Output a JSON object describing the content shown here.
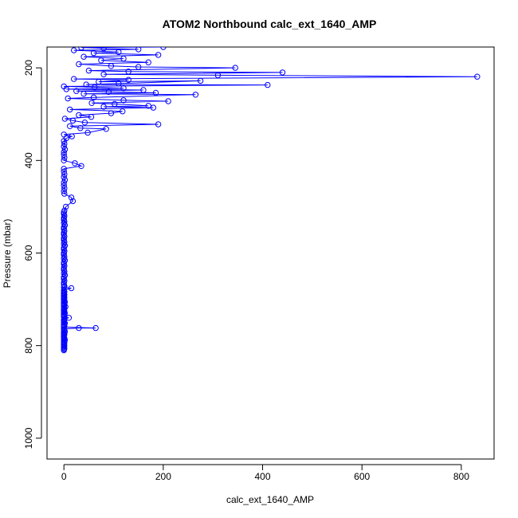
{
  "chart_data": {
    "type": "line",
    "title": "ATOM2 Northbound calc_ext_1640_AMP",
    "xlabel": "calc_ext_1640_AMP",
    "ylabel": "Pressure (mbar)",
    "x_ticks": [
      0,
      200,
      400,
      600,
      800
    ],
    "y_ticks": [
      200,
      400,
      600,
      800,
      1000
    ],
    "xlim": [
      -34,
      866
    ],
    "ylim_inverted": [
      1045,
      155
    ],
    "grid": false,
    "legend": "none",
    "series_color": "#0000ff",
    "marker": "open-circle",
    "series": [
      {
        "points": [
          [
            0,
            810
          ],
          [
            0,
            808
          ],
          [
            1,
            806
          ],
          [
            0,
            804
          ],
          [
            0,
            802
          ],
          [
            1,
            800
          ],
          [
            0,
            798
          ],
          [
            0,
            796
          ],
          [
            1,
            794
          ],
          [
            0,
            792
          ],
          [
            0,
            790
          ],
          [
            2,
            788
          ],
          [
            0,
            786
          ],
          [
            1,
            784
          ],
          [
            0,
            782
          ],
          [
            0,
            780
          ],
          [
            0,
            778
          ],
          [
            1,
            776
          ],
          [
            0,
            774
          ],
          [
            0,
            772
          ],
          [
            2,
            770
          ],
          [
            0,
            768
          ],
          [
            1,
            766
          ],
          [
            0,
            764
          ],
          [
            30,
            762
          ],
          [
            64,
            762
          ],
          [
            0,
            760
          ],
          [
            1,
            758
          ],
          [
            0,
            756
          ],
          [
            0,
            754
          ],
          [
            2,
            752
          ],
          [
            0,
            750
          ],
          [
            1,
            748
          ],
          [
            0,
            746
          ],
          [
            0,
            744
          ],
          [
            1,
            742
          ],
          [
            10,
            740
          ],
          [
            0,
            738
          ],
          [
            1,
            736
          ],
          [
            0,
            734
          ],
          [
            0,
            732
          ],
          [
            2,
            730
          ],
          [
            0,
            728
          ],
          [
            1,
            726
          ],
          [
            0,
            724
          ],
          [
            0,
            722
          ],
          [
            1,
            720
          ],
          [
            0,
            718
          ],
          [
            3,
            716
          ],
          [
            0,
            714
          ],
          [
            1,
            712
          ],
          [
            0,
            710
          ],
          [
            0,
            708
          ],
          [
            2,
            706
          ],
          [
            0,
            704
          ],
          [
            1,
            702
          ],
          [
            0,
            700
          ],
          [
            0,
            698
          ],
          [
            1,
            696
          ],
          [
            0,
            694
          ],
          [
            0,
            692
          ],
          [
            1,
            690
          ],
          [
            0,
            688
          ],
          [
            0,
            686
          ],
          [
            1,
            684
          ],
          [
            0,
            682
          ],
          [
            0,
            680
          ],
          [
            15,
            676
          ],
          [
            0,
            674
          ],
          [
            1,
            672
          ],
          [
            0,
            668
          ],
          [
            0,
            664
          ],
          [
            1,
            660
          ],
          [
            0,
            656
          ],
          [
            0,
            652
          ],
          [
            2,
            648
          ],
          [
            0,
            644
          ],
          [
            1,
            640
          ],
          [
            0,
            636
          ],
          [
            0,
            632
          ],
          [
            1,
            628
          ],
          [
            0,
            624
          ],
          [
            0,
            620
          ],
          [
            2,
            616
          ],
          [
            0,
            612
          ],
          [
            1,
            608
          ],
          [
            0,
            604
          ],
          [
            0,
            600
          ],
          [
            1,
            596
          ],
          [
            0,
            592
          ],
          [
            0,
            588
          ],
          [
            2,
            584
          ],
          [
            0,
            580
          ],
          [
            1,
            576
          ],
          [
            0,
            572
          ],
          [
            0,
            568
          ],
          [
            1,
            564
          ],
          [
            0,
            560
          ],
          [
            0,
            556
          ],
          [
            1,
            552
          ],
          [
            0,
            548
          ],
          [
            0,
            544
          ],
          [
            2,
            540
          ],
          [
            0,
            536
          ],
          [
            1,
            532
          ],
          [
            0,
            528
          ],
          [
            0,
            524
          ],
          [
            1,
            520
          ],
          [
            0,
            516
          ],
          [
            0,
            512
          ],
          [
            1,
            508
          ],
          [
            4,
            500
          ],
          [
            18,
            488
          ],
          [
            15,
            480
          ],
          [
            1,
            472
          ],
          [
            0,
            466
          ],
          [
            1,
            460
          ],
          [
            0,
            454
          ],
          [
            0,
            448
          ],
          [
            2,
            442
          ],
          [
            0,
            436
          ],
          [
            1,
            430
          ],
          [
            0,
            424
          ],
          [
            0,
            418
          ],
          [
            35,
            412
          ],
          [
            22,
            406
          ],
          [
            0,
            400
          ],
          [
            1,
            394
          ],
          [
            0,
            388
          ],
          [
            0,
            382
          ],
          [
            2,
            376
          ],
          [
            0,
            370
          ],
          [
            1,
            364
          ],
          [
            0,
            358
          ],
          [
            5,
            352
          ],
          [
            16,
            348
          ],
          [
            0,
            344
          ],
          [
            48,
            340
          ],
          [
            85,
            332
          ],
          [
            33,
            330
          ],
          [
            12,
            326
          ],
          [
            190,
            322
          ],
          [
            42,
            318
          ],
          [
            18,
            314
          ],
          [
            2,
            310
          ],
          [
            55,
            306
          ],
          [
            30,
            302
          ],
          [
            95,
            298
          ],
          [
            118,
            294
          ],
          [
            12,
            290
          ],
          [
            180,
            286
          ],
          [
            80,
            284
          ],
          [
            170,
            282
          ],
          [
            102,
            278
          ],
          [
            56,
            276
          ],
          [
            210,
            272
          ],
          [
            120,
            270
          ],
          [
            8,
            266
          ],
          [
            60,
            264
          ],
          [
            265,
            258
          ],
          [
            40,
            256
          ],
          [
            185,
            254
          ],
          [
            90,
            252
          ],
          [
            25,
            250
          ],
          [
            160,
            248
          ],
          [
            5,
            246
          ],
          [
            120,
            244
          ],
          [
            62,
            242
          ],
          [
            0,
            240
          ],
          [
            410,
            237
          ],
          [
            45,
            236
          ],
          [
            110,
            234
          ],
          [
            275,
            228
          ],
          [
            70,
            230
          ],
          [
            130,
            226
          ],
          [
            20,
            224
          ],
          [
            832,
            219
          ],
          [
            310,
            216
          ],
          [
            80,
            214
          ],
          [
            440,
            210
          ],
          [
            130,
            208
          ],
          [
            50,
            206
          ],
          [
            345,
            200
          ],
          [
            150,
            198
          ],
          [
            95,
            196
          ],
          [
            30,
            192
          ],
          [
            170,
            188
          ],
          [
            75,
            184
          ],
          [
            120,
            180
          ],
          [
            40,
            176
          ],
          [
            190,
            172
          ],
          [
            60,
            168
          ],
          [
            110,
            166
          ],
          [
            20,
            162
          ],
          [
            150,
            160
          ],
          [
            80,
            158
          ],
          [
            35,
            156
          ],
          [
            200,
            155
          ]
        ]
      }
    ]
  }
}
